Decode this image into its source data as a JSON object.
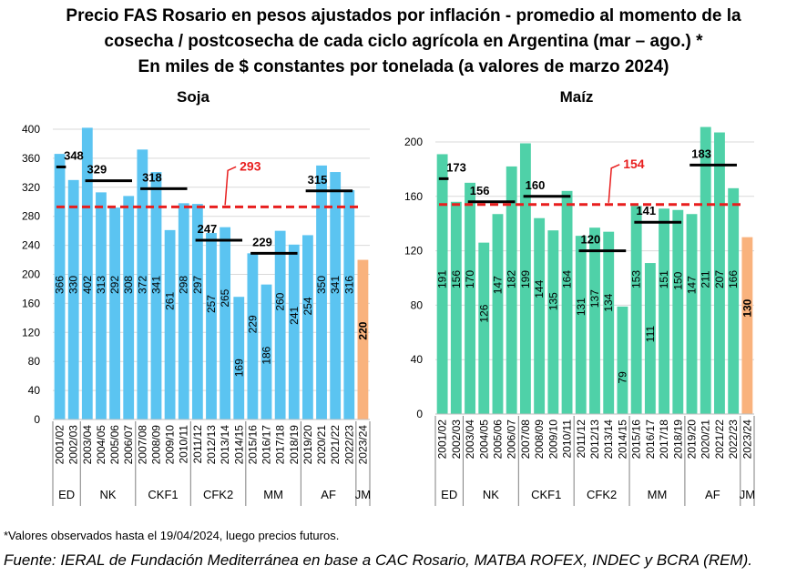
{
  "title_lines": [
    "Precio FAS Rosario en pesos ajustados por inflación - promedio al momento de la",
    "cosecha / postcosecha de cada ciclo agrícola en Argentina (mar – ago.) *",
    "En miles de $ constantes por tonelada (a valores de marzo 2024)"
  ],
  "footnote": "*Valores observados hasta el 19/04/2024, luego precios futuros.",
  "source": "Fuente: IERAL de Fundación Mediterránea en base a CAC Rosario, MATBA ROFEX, INDEC y BCRA (REM).",
  "colors": {
    "soja_bar": "#5BC4F1",
    "maiz_bar": "#4FD1A8",
    "highlight_bar": "#F9B27D",
    "average_line": "#E81E1E",
    "period_line": "#000000",
    "grid": "#D9D9D9"
  },
  "chart_data": [
    {
      "type": "bar",
      "title": "Soja",
      "categories": [
        "2001/02",
        "2002/03",
        "2003/04",
        "2004/05",
        "2005/06",
        "2006/07",
        "2007/08",
        "2008/09",
        "2009/10",
        "2010/11",
        "2011/12",
        "2012/13",
        "2013/14",
        "2014/15",
        "2015/16",
        "2016/17",
        "2017/18",
        "2018/19",
        "2019/20",
        "2020/21",
        "2021/22",
        "2022/23",
        "2023/24"
      ],
      "values": [
        366,
        330,
        402,
        313,
        292,
        308,
        372,
        341,
        261,
        298,
        297,
        257,
        265,
        169,
        229,
        186,
        260,
        241,
        254,
        350,
        341,
        316,
        220
      ],
      "highlight_index": 22,
      "ylim": [
        0,
        400
      ],
      "yticks": [
        0,
        40,
        80,
        120,
        160,
        200,
        240,
        280,
        320,
        360,
        400
      ],
      "average": {
        "value": 293,
        "label": "293"
      },
      "periods": [
        {
          "label": "ED",
          "start": 0,
          "end": 1,
          "avg": 348,
          "avg_label": "348"
        },
        {
          "label": "NK",
          "start": 2,
          "end": 5,
          "avg": 329,
          "avg_label": "329"
        },
        {
          "label": "CKF1",
          "start": 6,
          "end": 9,
          "avg": 318,
          "avg_label": "318"
        },
        {
          "label": "CFK2",
          "start": 10,
          "end": 13,
          "avg": 247,
          "avg_label": "247"
        },
        {
          "label": "MM",
          "start": 14,
          "end": 17,
          "avg": 229,
          "avg_label": "229"
        },
        {
          "label": "AF",
          "start": 18,
          "end": 21,
          "avg": 315,
          "avg_label": "315"
        },
        {
          "label": "JM",
          "start": 22,
          "end": 22,
          "avg": null,
          "avg_label": ""
        }
      ]
    },
    {
      "type": "bar",
      "title": "Maíz",
      "categories": [
        "2001/02",
        "2002/03",
        "2003/04",
        "2004/05",
        "2005/06",
        "2006/07",
        "2007/08",
        "2008/09",
        "2009/10",
        "2010/11",
        "2011/12",
        "2012/13",
        "2013/14",
        "2014/15",
        "2015/16",
        "2016/17",
        "2017/18",
        "2018/19",
        "2019/20",
        "2020/21",
        "2021/22",
        "2022/23",
        "2023/24"
      ],
      "values": [
        191,
        156,
        170,
        126,
        147,
        182,
        199,
        144,
        135,
        164,
        131,
        137,
        134,
        79,
        153,
        111,
        151,
        150,
        147,
        211,
        207,
        166,
        130
      ],
      "highlight_index": 22,
      "ylim": [
        0,
        200
      ],
      "yticks": [
        0,
        40,
        80,
        120,
        160,
        200
      ],
      "average": {
        "value": 154,
        "label": "154"
      },
      "periods": [
        {
          "label": "ED",
          "start": 0,
          "end": 1,
          "avg": 173,
          "avg_label": "173"
        },
        {
          "label": "NK",
          "start": 2,
          "end": 5,
          "avg": 156,
          "avg_label": "156"
        },
        {
          "label": "CKF1",
          "start": 6,
          "end": 9,
          "avg": 160,
          "avg_label": "160"
        },
        {
          "label": "CFK2",
          "start": 10,
          "end": 13,
          "avg": 120,
          "avg_label": "120"
        },
        {
          "label": "MM",
          "start": 14,
          "end": 17,
          "avg": 141,
          "avg_label": "141"
        },
        {
          "label": "AF",
          "start": 18,
          "end": 21,
          "avg": 183,
          "avg_label": "183"
        },
        {
          "label": "JM",
          "start": 22,
          "end": 22,
          "avg": null,
          "avg_label": ""
        }
      ]
    }
  ]
}
